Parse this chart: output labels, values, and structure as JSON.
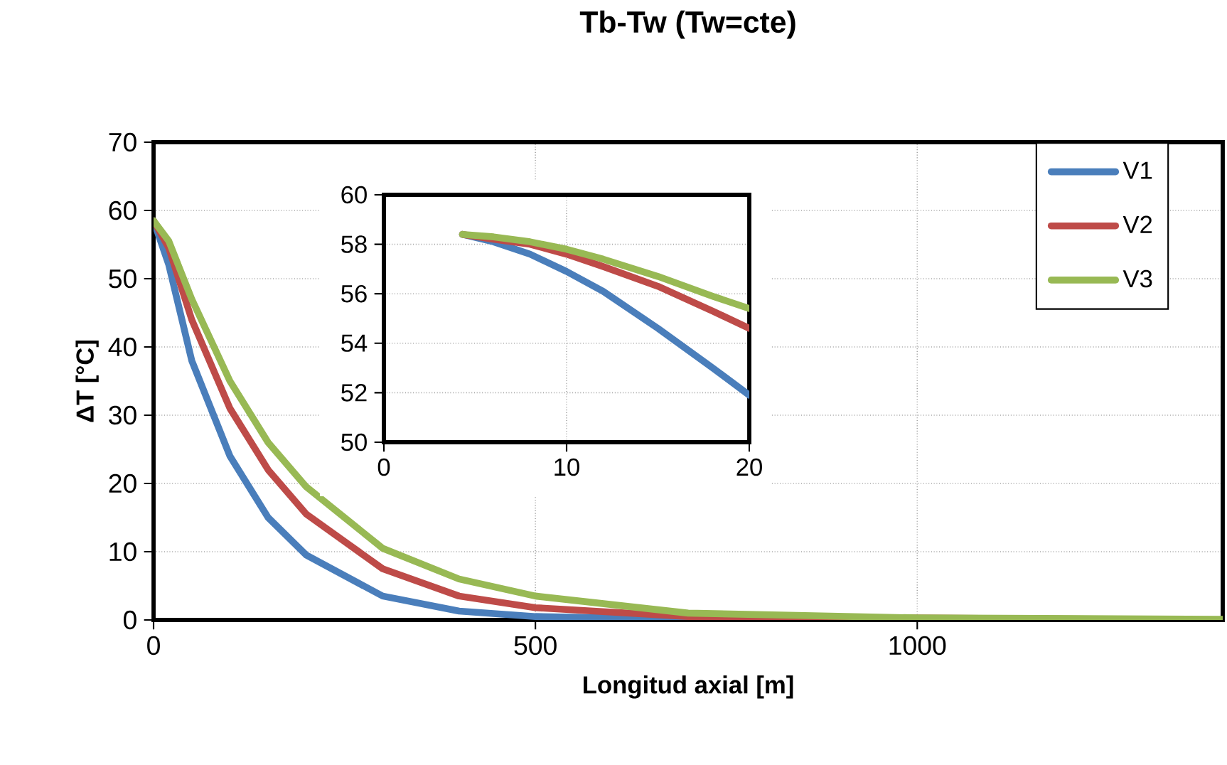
{
  "chart_data": [
    {
      "type": "line",
      "title": "Tb-Tw (Tw=cte)",
      "xlabel": "Longitud axial [m]",
      "ylabel": "ΔT [°C]",
      "xlim": [
        0,
        1400
      ],
      "ylim": [
        0,
        70
      ],
      "xticks": [
        0,
        500,
        1000
      ],
      "yticks": [
        0,
        10,
        20,
        30,
        40,
        50,
        60,
        70
      ],
      "grid": true,
      "legend": "top right",
      "line_style": "solid",
      "marker": "none",
      "series": [
        {
          "name": "V1",
          "color": "#4a7ebb",
          "x": [
            0,
            20,
            50,
            100,
            150,
            200,
            300,
            400,
            500,
            700,
            1000,
            1400
          ],
          "values": [
            58.5,
            52,
            38,
            24,
            15,
            9.5,
            3.5,
            1.3,
            0.5,
            0.1,
            0,
            0
          ]
        },
        {
          "name": "V2",
          "color": "#be4b48",
          "x": [
            0,
            20,
            50,
            100,
            150,
            200,
            300,
            400,
            500,
            700,
            1000,
            1400
          ],
          "values": [
            58.5,
            54.5,
            44,
            31,
            22,
            15.5,
            7.5,
            3.5,
            1.8,
            0.5,
            null,
            0
          ]
        },
        {
          "name": "V3",
          "color": "#98b954",
          "x": [
            0,
            20,
            50,
            100,
            150,
            200,
            300,
            400,
            500,
            700,
            1000,
            1400
          ],
          "values": [
            58.5,
            55.5,
            47,
            35,
            26,
            19.5,
            10.5,
            6,
            3.5,
            1,
            0.3,
            0.1
          ]
        }
      ]
    },
    {
      "type": "line",
      "xlim": [
        0,
        20
      ],
      "ylim": [
        50,
        60
      ],
      "xticks": [
        0,
        10,
        20
      ],
      "yticks": [
        50,
        52,
        54,
        56,
        58,
        60
      ],
      "grid": true,
      "line_style": "solid",
      "marker": "none",
      "series": [
        {
          "color": "#4a7ebb",
          "x": [
            4.3,
            6,
            8,
            10,
            12,
            15,
            18,
            20
          ],
          "values": [
            58.4,
            58.1,
            57.6,
            56.9,
            56.1,
            54.6,
            53.0,
            51.9
          ]
        },
        {
          "color": "#be4b48",
          "x": [
            4.3,
            6,
            8,
            10,
            12,
            15,
            18,
            20
          ],
          "values": [
            58.4,
            58.2,
            58.0,
            57.6,
            57.1,
            56.3,
            55.3,
            54.6
          ]
        },
        {
          "color": "#98b954",
          "x": [
            4.3,
            6,
            8,
            10,
            12,
            15,
            18,
            20
          ],
          "values": [
            58.4,
            58.3,
            58.1,
            57.8,
            57.4,
            56.7,
            55.9,
            55.4
          ]
        }
      ]
    }
  ]
}
